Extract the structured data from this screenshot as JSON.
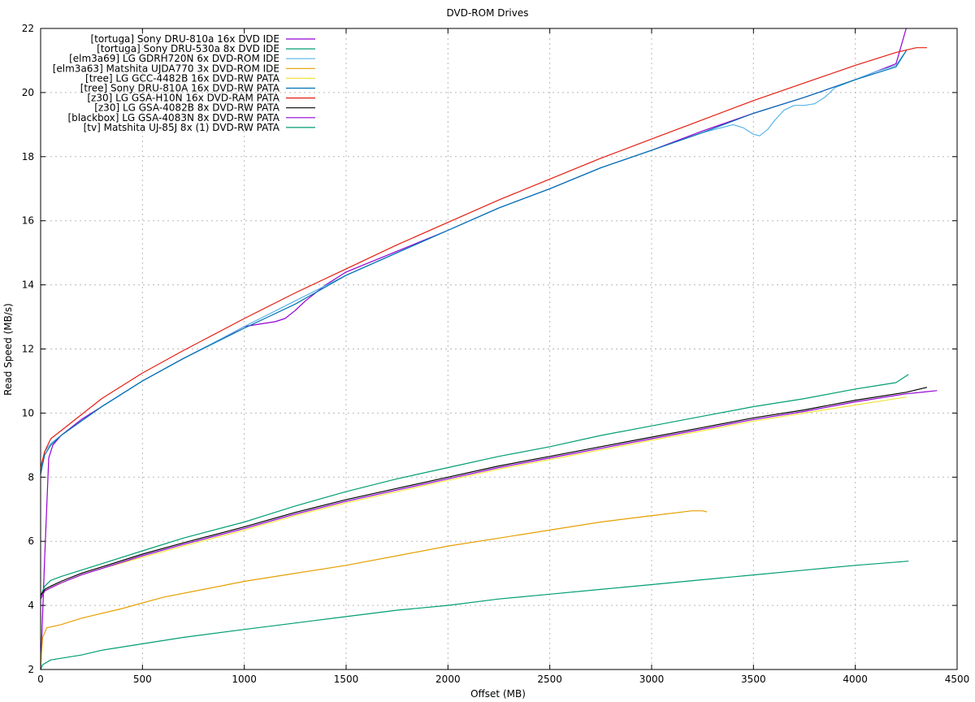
{
  "chart_data": {
    "type": "line",
    "title": "DVD-ROM Drives",
    "xlabel": "Offset (MB)",
    "ylabel": "Read Speed (MB/s)",
    "xlim": [
      0,
      4500
    ],
    "ylim": [
      2,
      22
    ],
    "xticks": [
      0,
      500,
      1000,
      1500,
      2000,
      2500,
      3000,
      3500,
      4000,
      4500
    ],
    "yticks": [
      2,
      4,
      6,
      8,
      10,
      12,
      14,
      16,
      18,
      20,
      22
    ],
    "grid": true,
    "legend_position": "top-left",
    "series": [
      {
        "name": "[tortuga] Sony DRU-810a 16x DVD IDE",
        "color": "#9400d3",
        "x": [
          0,
          20,
          40,
          60,
          100,
          200,
          300,
          500,
          700,
          900,
          1000,
          1050,
          1100,
          1150,
          1200,
          1250,
          1300,
          1400,
          1500,
          1750,
          2000,
          2250,
          2500,
          2750,
          3000,
          3250,
          3500,
          3750,
          4000,
          4200,
          4250
        ],
        "y": [
          2.0,
          5.5,
          8.6,
          9.0,
          9.3,
          9.8,
          10.2,
          11.0,
          11.7,
          12.35,
          12.7,
          12.75,
          12.8,
          12.85,
          12.95,
          13.2,
          13.5,
          14.0,
          14.4,
          15.05,
          15.7,
          16.4,
          17.0,
          17.65,
          18.2,
          18.8,
          19.35,
          19.85,
          20.4,
          20.9,
          22.0
        ]
      },
      {
        "name": "[tortuga] Sony DRU-530a 8x DVD IDE",
        "color": "#009e73",
        "x": [
          0,
          20,
          50,
          100,
          200,
          300,
          500,
          700,
          1000,
          1250,
          1500,
          1750,
          2000,
          2250,
          2500,
          2750,
          3000,
          3250,
          3500,
          3750,
          4000,
          4100,
          4200,
          4260
        ],
        "y": [
          4.3,
          4.6,
          4.78,
          4.9,
          5.1,
          5.3,
          5.7,
          6.1,
          6.6,
          7.1,
          7.55,
          7.95,
          8.3,
          8.65,
          8.95,
          9.3,
          9.6,
          9.9,
          10.2,
          10.45,
          10.75,
          10.85,
          10.95,
          11.2
        ]
      },
      {
        "name": "[elm3a69] LG GDRH720N 6x DVD-ROM IDE",
        "color": "#56b4e9",
        "x": [
          0,
          20,
          50,
          100,
          200,
          300,
          500,
          700,
          1000,
          1250,
          1500,
          1750,
          2000,
          2250,
          2500,
          2750,
          3000,
          3250,
          3400,
          3450,
          3500,
          3530,
          3570,
          3600,
          3650,
          3700,
          3750,
          3800,
          3850,
          3900,
          4000,
          4100,
          4200,
          4250
        ],
        "y": [
          8.1,
          8.8,
          9.05,
          9.3,
          9.75,
          10.2,
          11.0,
          11.7,
          12.7,
          13.5,
          14.3,
          15.0,
          15.7,
          16.4,
          17.0,
          17.65,
          18.2,
          18.75,
          19.0,
          18.9,
          18.7,
          18.65,
          18.85,
          19.1,
          19.45,
          19.6,
          19.6,
          19.65,
          19.85,
          20.15,
          20.4,
          20.65,
          20.85,
          21.3
        ]
      },
      {
        "name": "[elm3a63] Matshita UJDA770 3x DVD-ROM IDE",
        "color": "#e69f00",
        "x": [
          0,
          10,
          30,
          100,
          200,
          400,
          600,
          800,
          1000,
          1250,
          1500,
          1750,
          2000,
          2250,
          2500,
          2750,
          3000,
          3200,
          3250,
          3270
        ],
        "y": [
          2.1,
          3.0,
          3.3,
          3.4,
          3.6,
          3.9,
          4.25,
          4.5,
          4.75,
          5.0,
          5.25,
          5.55,
          5.85,
          6.1,
          6.35,
          6.6,
          6.8,
          6.95,
          6.95,
          6.92
        ]
      },
      {
        "name": "[tree] LG GCC-4482B 16x DVD-RW PATA",
        "color": "#f0e442",
        "x": [
          0,
          20,
          50,
          100,
          200,
          300,
          500,
          700,
          1000,
          1250,
          1500,
          1750,
          2000,
          2250,
          2500,
          2750,
          3000,
          3250,
          3500,
          3750,
          4000,
          4250
        ],
        "y": [
          4.2,
          4.45,
          4.55,
          4.7,
          4.95,
          5.15,
          5.5,
          5.85,
          6.35,
          6.8,
          7.2,
          7.55,
          7.9,
          8.25,
          8.55,
          8.85,
          9.15,
          9.45,
          9.75,
          10.0,
          10.25,
          10.5
        ]
      },
      {
        "name": "[tree] Sony DRU-810A 16x DVD-RW PATA",
        "color": "#0072b2",
        "x": [
          0,
          20,
          50,
          100,
          200,
          300,
          500,
          700,
          1000,
          1250,
          1500,
          1750,
          2000,
          2250,
          2500,
          2750,
          3000,
          3250,
          3500,
          3750,
          4000,
          4200,
          4250
        ],
        "y": [
          8.1,
          8.7,
          9.0,
          9.3,
          9.75,
          10.2,
          11.0,
          11.7,
          12.65,
          13.4,
          14.3,
          15.0,
          15.7,
          16.4,
          17.0,
          17.65,
          18.2,
          18.75,
          19.35,
          19.85,
          20.4,
          20.8,
          21.3
        ]
      },
      {
        "name": "[z30] LG GSA-H10N 16x DVD-RAM PATA",
        "color": "#e51e10",
        "x": [
          0,
          20,
          50,
          100,
          200,
          300,
          500,
          700,
          1000,
          1250,
          1500,
          1750,
          2000,
          2250,
          2500,
          2750,
          3000,
          3250,
          3500,
          3750,
          4000,
          4200,
          4300,
          4350
        ],
        "y": [
          8.3,
          8.8,
          9.2,
          9.45,
          9.95,
          10.45,
          11.25,
          11.95,
          12.95,
          13.75,
          14.5,
          15.25,
          15.95,
          16.65,
          17.3,
          17.95,
          18.55,
          19.15,
          19.75,
          20.3,
          20.85,
          21.25,
          21.4,
          21.4
        ]
      },
      {
        "name": "[z30] LG GSA-4082B 8x DVD-RW PATA",
        "color": "#000000",
        "x": [
          0,
          20,
          50,
          100,
          200,
          300,
          500,
          700,
          1000,
          1250,
          1500,
          1750,
          2000,
          2250,
          2500,
          2750,
          3000,
          3250,
          3500,
          3750,
          4000,
          4250,
          4350
        ],
        "y": [
          4.3,
          4.5,
          4.6,
          4.75,
          5.0,
          5.2,
          5.6,
          5.95,
          6.45,
          6.9,
          7.3,
          7.65,
          8.0,
          8.35,
          8.65,
          8.95,
          9.25,
          9.55,
          9.85,
          10.1,
          10.4,
          10.65,
          10.8
        ]
      },
      {
        "name": "[blackbox] LG GSA-4083N 8x DVD-RW PATA",
        "color": "#9400d3",
        "x": [
          0,
          20,
          50,
          100,
          200,
          300,
          500,
          700,
          1000,
          1250,
          1500,
          1750,
          2000,
          2250,
          2500,
          2750,
          3000,
          3250,
          3500,
          3750,
          4000,
          4250,
          4400
        ],
        "y": [
          4.2,
          4.45,
          4.55,
          4.7,
          4.95,
          5.15,
          5.55,
          5.9,
          6.4,
          6.85,
          7.25,
          7.6,
          7.95,
          8.3,
          8.6,
          8.9,
          9.2,
          9.5,
          9.8,
          10.05,
          10.35,
          10.6,
          10.7
        ]
      },
      {
        "name": "[tv] Matshita UJ-85J 8x (1) DVD-RW PATA",
        "color": "#009e73",
        "x": [
          0,
          10,
          50,
          100,
          200,
          300,
          500,
          700,
          1000,
          1250,
          1500,
          1750,
          2000,
          2250,
          2500,
          2750,
          3000,
          3250,
          3500,
          3750,
          4000,
          4260
        ],
        "y": [
          2.0,
          2.15,
          2.3,
          2.35,
          2.45,
          2.6,
          2.8,
          3.0,
          3.25,
          3.45,
          3.65,
          3.85,
          4.0,
          4.2,
          4.35,
          4.5,
          4.65,
          4.8,
          4.95,
          5.1,
          5.25,
          5.38
        ]
      }
    ]
  }
}
